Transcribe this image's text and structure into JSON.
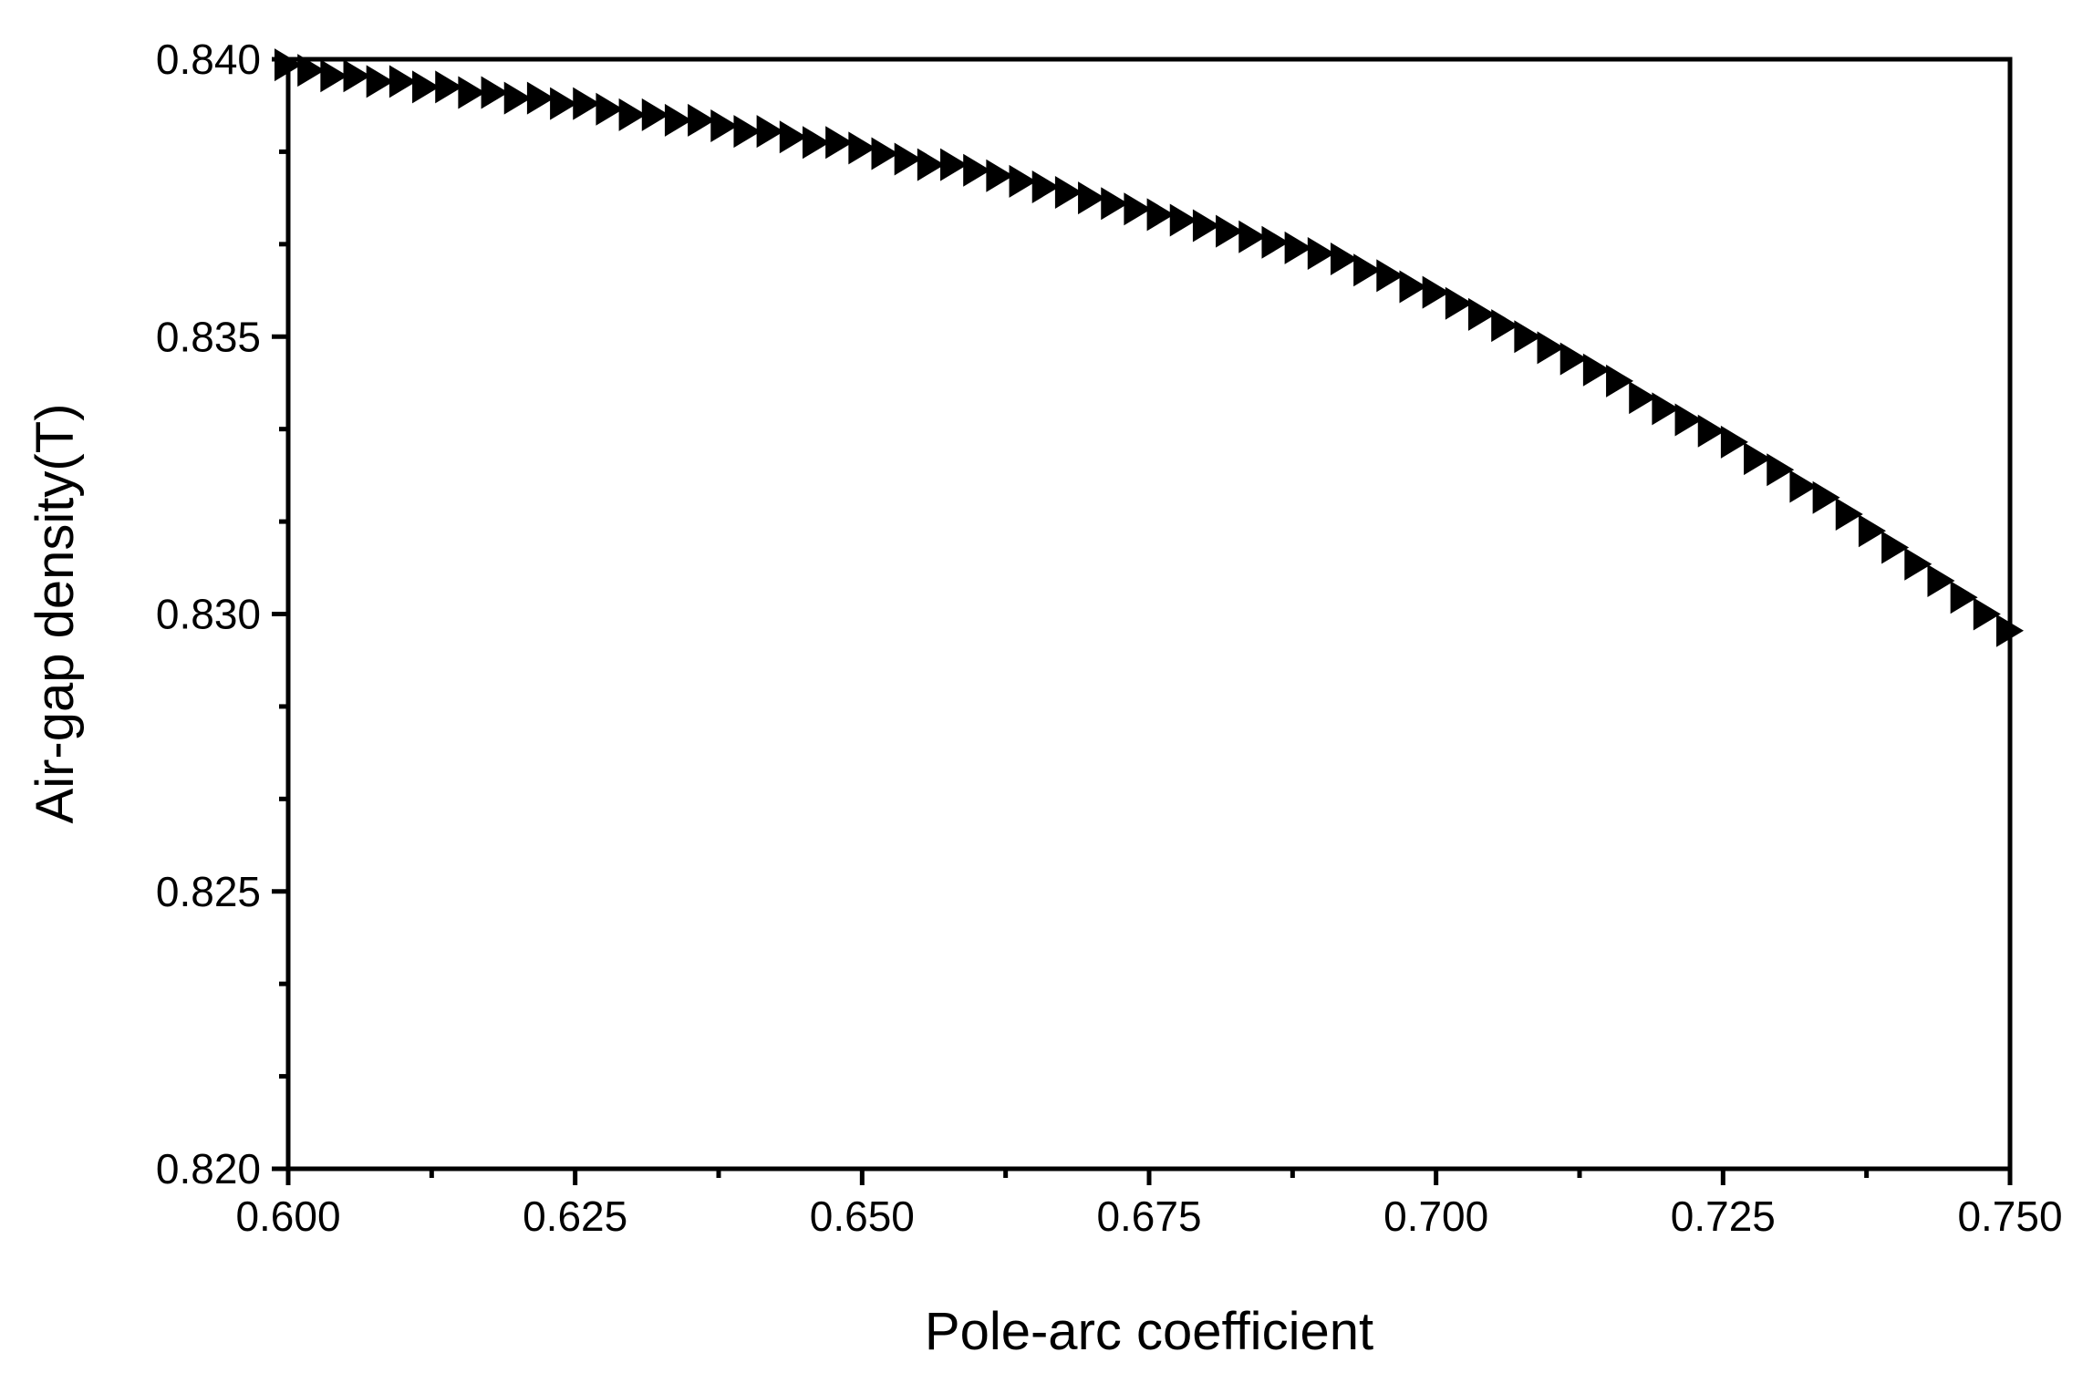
{
  "chart_data": {
    "type": "scatter",
    "title": "",
    "xlabel": "Pole-arc coefficient",
    "ylabel": "Air-gap density(T)",
    "xlim": [
      0.6,
      0.75
    ],
    "ylim": [
      0.82,
      0.84
    ],
    "x_ticks": [
      "0.600",
      "0.625",
      "0.650",
      "0.675",
      "0.700",
      "0.725",
      "0.750"
    ],
    "y_ticks": [
      "0.820",
      "0.825",
      "0.830",
      "0.835",
      "0.840"
    ],
    "marker": "right-triangle",
    "marker_color": "#000000",
    "grid": false,
    "legend": "none",
    "series": [
      {
        "x": [
          0.6,
          0.602,
          0.604,
          0.606,
          0.608,
          0.61,
          0.612,
          0.614,
          0.616,
          0.618,
          0.62,
          0.622,
          0.624,
          0.626,
          0.628,
          0.63,
          0.632,
          0.634,
          0.636,
          0.638,
          0.64,
          0.642,
          0.644,
          0.646,
          0.648,
          0.65,
          0.652,
          0.654,
          0.656,
          0.658,
          0.66,
          0.662,
          0.664,
          0.666,
          0.668,
          0.67,
          0.672,
          0.674,
          0.676,
          0.678,
          0.68,
          0.682,
          0.684,
          0.686,
          0.688,
          0.69,
          0.692,
          0.694,
          0.696,
          0.698,
          0.7,
          0.702,
          0.704,
          0.706,
          0.708,
          0.71,
          0.712,
          0.714,
          0.716,
          0.718,
          0.72,
          0.722,
          0.724,
          0.726,
          0.728,
          0.73,
          0.732,
          0.734,
          0.736,
          0.738,
          0.74,
          0.742,
          0.744,
          0.746,
          0.748,
          0.75
        ],
        "y": [
          0.8399,
          0.8398,
          0.8397,
          0.8397,
          0.8396,
          0.8396,
          0.8395,
          0.8395,
          0.8394,
          0.8394,
          0.8393,
          0.8393,
          0.8392,
          0.8392,
          0.8391,
          0.839,
          0.839,
          0.8389,
          0.8389,
          0.8388,
          0.8387,
          0.8387,
          0.8386,
          0.8385,
          0.8385,
          0.8384,
          0.8383,
          0.8382,
          0.8381,
          0.8381,
          0.838,
          0.8379,
          0.8378,
          0.8377,
          0.8376,
          0.8375,
          0.8374,
          0.8373,
          0.8372,
          0.8371,
          0.837,
          0.8369,
          0.8368,
          0.8367,
          0.8366,
          0.8365,
          0.8364,
          0.8362,
          0.8361,
          0.8359,
          0.8358,
          0.8356,
          0.8354,
          0.8352,
          0.835,
          0.8348,
          0.8346,
          0.8344,
          0.8342,
          0.8339,
          0.8337,
          0.8335,
          0.8333,
          0.8331,
          0.8328,
          0.8326,
          0.8323,
          0.8321,
          0.8318,
          0.8315,
          0.8312,
          0.8309,
          0.8306,
          0.8303,
          0.83,
          0.8297
        ]
      }
    ]
  }
}
